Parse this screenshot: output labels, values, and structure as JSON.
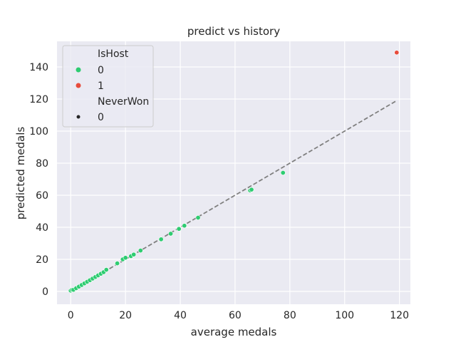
{
  "chart_data": {
    "type": "scatter",
    "title": "predict vs history",
    "xlabel": "average medals",
    "ylabel": "predicted medals",
    "xlim": [
      -5,
      124
    ],
    "ylim": [
      -8,
      156
    ],
    "xticks": [
      0,
      20,
      40,
      60,
      80,
      100,
      120
    ],
    "yticks": [
      0,
      20,
      40,
      60,
      80,
      100,
      120,
      140
    ],
    "grid": true,
    "legend_position": "top-left",
    "legend": {
      "hue_title": "IsHost",
      "hue_entries": [
        {
          "label": "0",
          "color": "#2ecc71"
        },
        {
          "label": "1",
          "color": "#e74c3c"
        }
      ],
      "style_title": "NeverWon",
      "style_entries": [
        {
          "label": "0",
          "color": "#262626"
        }
      ]
    },
    "reference_line": {
      "x": [
        0,
        119
      ],
      "y": [
        0,
        119
      ],
      "style": "dashed",
      "color": "#808080"
    },
    "series": [
      {
        "name": "0",
        "color": "#2ecc71",
        "points": [
          [
            0,
            0.5
          ],
          [
            0.5,
            1
          ],
          [
            1,
            1
          ],
          [
            2,
            2
          ],
          [
            3,
            3
          ],
          [
            4,
            4
          ],
          [
            5,
            5
          ],
          [
            6,
            6
          ],
          [
            7,
            7
          ],
          [
            8,
            8
          ],
          [
            9,
            9
          ],
          [
            10,
            10
          ],
          [
            11,
            11
          ],
          [
            12,
            12
          ],
          [
            13,
            13.5
          ],
          [
            17,
            17.5
          ],
          [
            19,
            20
          ],
          [
            20,
            21
          ],
          [
            22,
            22
          ],
          [
            23,
            23
          ],
          [
            25.5,
            25.5
          ],
          [
            33,
            32.5
          ],
          [
            36.5,
            36
          ],
          [
            39.5,
            39
          ],
          [
            41.5,
            41
          ],
          [
            46.5,
            46
          ],
          [
            65.5,
            63
          ],
          [
            66,
            63.5
          ],
          [
            77.5,
            74
          ]
        ]
      },
      {
        "name": "1",
        "color": "#e74c3c",
        "points": [
          [
            119,
            149
          ]
        ]
      }
    ]
  }
}
